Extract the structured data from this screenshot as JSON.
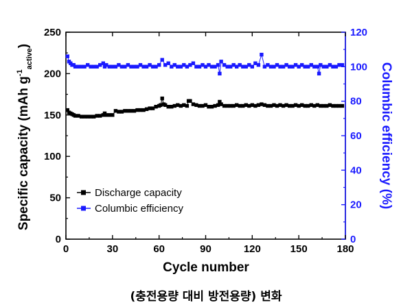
{
  "caption": "(충전용량 대비 방전용량) 변화",
  "chart_data": {
    "type": "scatter",
    "xlabel": "Cycle number",
    "ylabel": {
      "main": "Specific capacity (mAh g",
      "superscript": "-1",
      "subscript": "active",
      "close": ")"
    },
    "y2label": "Columbic efficiency (%)",
    "xlim": [
      0,
      180
    ],
    "ylim": [
      0,
      250
    ],
    "y2lim": [
      0,
      120
    ],
    "xticks": [
      0,
      30,
      60,
      90,
      120,
      150,
      180
    ],
    "yticks": [
      0,
      50,
      100,
      150,
      200,
      250
    ],
    "y2ticks": [
      0,
      20,
      40,
      60,
      80,
      100,
      120
    ],
    "legend_position": "lower-left",
    "grid": false,
    "series": [
      {
        "name": "Discharge capacity",
        "axis": "left",
        "color": "#000000",
        "marker": "square",
        "x": [
          1,
          2,
          3,
          4,
          5,
          6,
          8,
          10,
          12,
          14,
          16,
          18,
          20,
          22,
          24,
          25,
          26,
          28,
          30,
          32,
          34,
          36,
          38,
          40,
          42,
          44,
          46,
          48,
          50,
          52,
          54,
          56,
          58,
          60,
          61,
          62,
          63,
          64,
          66,
          68,
          70,
          72,
          74,
          76,
          78,
          79,
          80,
          82,
          84,
          86,
          88,
          90,
          92,
          94,
          96,
          98,
          99,
          100,
          102,
          104,
          106,
          108,
          110,
          112,
          114,
          116,
          118,
          120,
          122,
          124,
          126,
          128,
          130,
          132,
          134,
          136,
          138,
          140,
          142,
          144,
          146,
          148,
          150,
          152,
          154,
          156,
          158,
          160,
          162,
          164,
          166,
          168,
          170,
          172,
          174,
          176,
          178
        ],
        "values": [
          156,
          153,
          152,
          151,
          150,
          149,
          149,
          148,
          148,
          148,
          148,
          148,
          149,
          149,
          150,
          152,
          150,
          150,
          150,
          155,
          154,
          154,
          155,
          155,
          155,
          155,
          156,
          156,
          156,
          157,
          158,
          158,
          160,
          161,
          162,
          170,
          163,
          162,
          160,
          160,
          161,
          162,
          161,
          162,
          161,
          167,
          167,
          163,
          162,
          161,
          161,
          162,
          160,
          160,
          161,
          162,
          166,
          163,
          161,
          161,
          161,
          161,
          162,
          161,
          161,
          162,
          161,
          162,
          161,
          162,
          163,
          162,
          161,
          161,
          162,
          161,
          162,
          161,
          162,
          161,
          161,
          162,
          161,
          162,
          161,
          161,
          162,
          161,
          162,
          161,
          161,
          161,
          162,
          161,
          161,
          161,
          161
        ]
      },
      {
        "name": "Columbic efficiency",
        "axis": "right",
        "color": "#1a1aff",
        "marker": "square",
        "x": [
          1,
          2,
          3,
          4,
          5,
          6,
          8,
          10,
          12,
          14,
          16,
          18,
          20,
          22,
          24,
          25,
          26,
          28,
          30,
          32,
          34,
          36,
          38,
          40,
          42,
          44,
          46,
          48,
          50,
          52,
          54,
          56,
          58,
          60,
          62,
          64,
          66,
          68,
          70,
          72,
          74,
          76,
          78,
          80,
          82,
          84,
          86,
          88,
          90,
          92,
          94,
          96,
          98,
          99,
          100,
          102,
          104,
          106,
          108,
          110,
          112,
          114,
          116,
          118,
          120,
          122,
          124,
          126,
          128,
          130,
          132,
          134,
          136,
          138,
          140,
          142,
          144,
          146,
          148,
          150,
          152,
          154,
          156,
          158,
          160,
          162,
          163,
          164,
          166,
          168,
          170,
          172,
          174,
          176,
          178
        ],
        "values": [
          106,
          103,
          102,
          101,
          101,
          100,
          100,
          100,
          100,
          101,
          100,
          100,
          100,
          101,
          102,
          100,
          101,
          100,
          100,
          100,
          101,
          100,
          100,
          101,
          100,
          100,
          100,
          101,
          100,
          100,
          101,
          100,
          100,
          101,
          104,
          101,
          102,
          100,
          101,
          100,
          100,
          101,
          100,
          101,
          102,
          100,
          100,
          101,
          100,
          101,
          100,
          100,
          101,
          96,
          103,
          101,
          100,
          100,
          101,
          100,
          101,
          100,
          100,
          101,
          100,
          102,
          101,
          107,
          100,
          101,
          100,
          100,
          101,
          100,
          100,
          101,
          100,
          100,
          101,
          100,
          101,
          100,
          100,
          101,
          100,
          100,
          96,
          101,
          100,
          100,
          101,
          100,
          100,
          101,
          101
        ]
      }
    ]
  }
}
